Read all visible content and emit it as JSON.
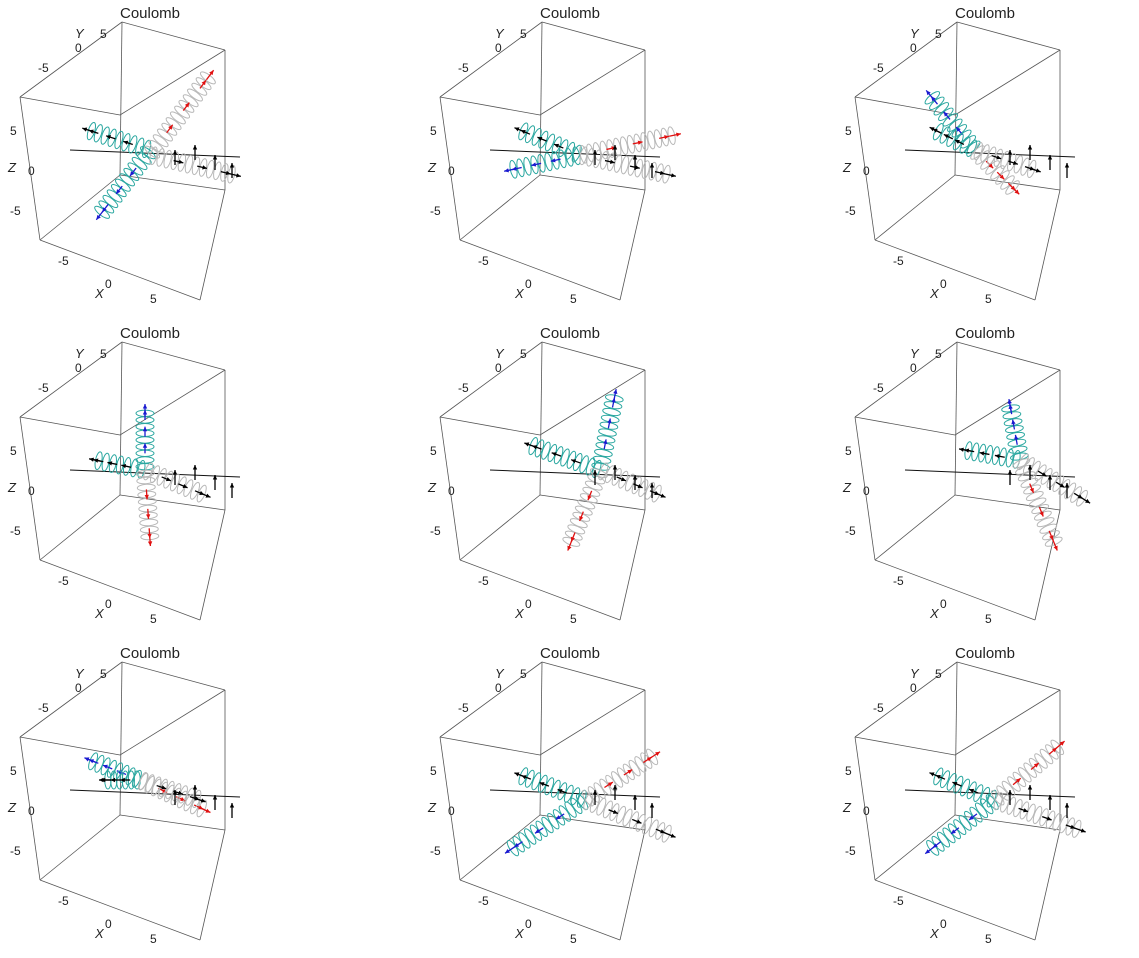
{
  "chart_data": {
    "type": "3d-trajectory-grid",
    "colors": {
      "box": "#555555",
      "field_line": "#111111",
      "neg_coil": "#2aa7a0",
      "neg_arrow": "#1a1ad0",
      "pos_coil": "#b8b8b8",
      "pos_arrow": "#e01010",
      "black_arrow": "#000000"
    },
    "panels": [
      {
        "title": "Coulomb",
        "xlabel": "X",
        "ylabel": "Y",
        "zlabel": "Z",
        "x_ticks": [
          "-5",
          "0",
          "5"
        ],
        "y_ticks": [
          "0",
          "5",
          "-5"
        ],
        "z_ticks": [
          "5",
          "0",
          "-5"
        ],
        "xlim": [
          -8,
          8
        ],
        "ylim": [
          -8,
          8
        ],
        "zlim": [
          -8,
          8
        ]
      },
      {
        "title": "Coulomb",
        "xlabel": "X",
        "ylabel": "Y",
        "zlabel": "Z",
        "x_ticks": [
          "-5",
          "0",
          "5"
        ],
        "y_ticks": [
          "0",
          "5",
          "-5"
        ],
        "z_ticks": [
          "5",
          "0",
          "-5"
        ],
        "xlim": [
          -8,
          8
        ],
        "ylim": [
          -8,
          8
        ],
        "zlim": [
          -8,
          8
        ]
      },
      {
        "title": "Coulomb",
        "xlabel": "X",
        "ylabel": "Y",
        "zlabel": "Z",
        "x_ticks": [
          "-5",
          "0",
          "5"
        ],
        "y_ticks": [
          "0",
          "5",
          "-5"
        ],
        "z_ticks": [
          "5",
          "0",
          "-5"
        ],
        "xlim": [
          -8,
          8
        ],
        "ylim": [
          -8,
          8
        ],
        "zlim": [
          -8,
          8
        ]
      },
      {
        "title": "Coulomb",
        "xlabel": "X",
        "ylabel": "Y",
        "zlabel": "Z",
        "x_ticks": [
          "-5",
          "0",
          "5"
        ],
        "y_ticks": [
          "0",
          "5",
          "-5"
        ],
        "z_ticks": [
          "5",
          "0",
          "-5"
        ],
        "xlim": [
          -8,
          8
        ],
        "ylim": [
          -8,
          8
        ],
        "zlim": [
          -8,
          8
        ]
      },
      {
        "title": "Coulomb",
        "xlabel": "X",
        "ylabel": "Y",
        "zlabel": "Z",
        "x_ticks": [
          "-5",
          "0",
          "5"
        ],
        "y_ticks": [
          "0",
          "5",
          "-5"
        ],
        "z_ticks": [
          "5",
          "0",
          "-5"
        ],
        "xlim": [
          -8,
          8
        ],
        "ylim": [
          -8,
          8
        ],
        "zlim": [
          -8,
          8
        ]
      },
      {
        "title": "Coulomb",
        "xlabel": "X",
        "ylabel": "Y",
        "zlabel": "Z",
        "x_ticks": [
          "-5",
          "0",
          "5"
        ],
        "y_ticks": [
          "0",
          "5",
          "-5"
        ],
        "z_ticks": [
          "5",
          "0",
          "-5"
        ],
        "xlim": [
          -8,
          8
        ],
        "ylim": [
          -8,
          8
        ],
        "zlim": [
          -8,
          8
        ]
      },
      {
        "title": "Coulomb",
        "xlabel": "X",
        "ylabel": "Y",
        "zlabel": "Z",
        "x_ticks": [
          "-5",
          "0",
          "5"
        ],
        "y_ticks": [
          "0",
          "5",
          "-5"
        ],
        "z_ticks": [
          "5",
          "0",
          "-5"
        ],
        "xlim": [
          -8,
          8
        ],
        "ylim": [
          -8,
          8
        ],
        "zlim": [
          -8,
          8
        ]
      },
      {
        "title": "Coulomb",
        "xlabel": "X",
        "ylabel": "Y",
        "zlabel": "Z",
        "x_ticks": [
          "-5",
          "0",
          "5"
        ],
        "y_ticks": [
          "0",
          "5",
          "-5"
        ],
        "z_ticks": [
          "5",
          "0",
          "-5"
        ],
        "xlim": [
          -8,
          8
        ],
        "ylim": [
          -8,
          8
        ],
        "zlim": [
          -8,
          8
        ]
      },
      {
        "title": "Coulomb",
        "xlabel": "X",
        "ylabel": "Y",
        "zlabel": "Z",
        "x_ticks": [
          "-5",
          "0",
          "5"
        ],
        "y_ticks": [
          "0",
          "5",
          "-5"
        ],
        "z_ticks": [
          "5",
          "0",
          "-5"
        ],
        "xlim": [
          -8,
          8
        ],
        "ylim": [
          -8,
          8
        ],
        "zlim": [
          -8,
          8
        ]
      }
    ]
  }
}
